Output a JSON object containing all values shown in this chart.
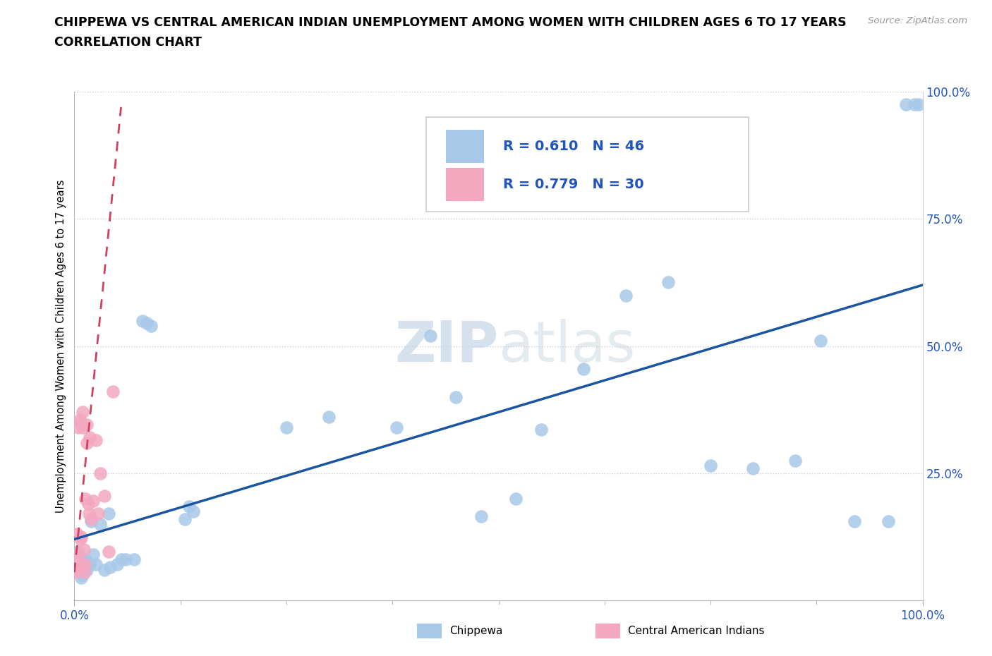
{
  "title_line1": "CHIPPEWA VS CENTRAL AMERICAN INDIAN UNEMPLOYMENT AMONG WOMEN WITH CHILDREN AGES 6 TO 17 YEARS",
  "title_line2": "CORRELATION CHART",
  "source": "Source: ZipAtlas.com",
  "ylabel": "Unemployment Among Women with Children Ages 6 to 17 years",
  "xlim": [
    0.0,
    1.0
  ],
  "ylim": [
    0.0,
    1.0
  ],
  "chippewa_color": "#a8c8e8",
  "central_american_color": "#f4a8c0",
  "chippewa_line_color": "#1a55a0",
  "central_american_line_color": "#d04060",
  "chippewa_R": 0.61,
  "chippewa_N": 46,
  "central_american_R": 0.779,
  "central_american_N": 30,
  "watermark_zip": "ZIP",
  "watermark_atlas": "atlas",
  "chippewa_x": [
    0.005,
    0.006,
    0.008,
    0.01,
    0.01,
    0.012,
    0.015,
    0.015,
    0.018,
    0.02,
    0.022,
    0.025,
    0.03,
    0.035,
    0.04,
    0.042,
    0.05,
    0.055,
    0.06,
    0.07,
    0.08,
    0.085,
    0.09,
    0.13,
    0.135,
    0.14,
    0.25,
    0.3,
    0.38,
    0.42,
    0.45,
    0.48,
    0.52,
    0.55,
    0.6,
    0.65,
    0.7,
    0.75,
    0.8,
    0.85,
    0.88,
    0.92,
    0.96,
    0.98,
    0.99,
    0.995
  ],
  "chippewa_y": [
    0.095,
    0.06,
    0.045,
    0.05,
    0.08,
    0.08,
    0.075,
    0.06,
    0.07,
    0.155,
    0.09,
    0.07,
    0.15,
    0.06,
    0.17,
    0.065,
    0.07,
    0.08,
    0.08,
    0.08,
    0.55,
    0.545,
    0.54,
    0.16,
    0.185,
    0.175,
    0.34,
    0.36,
    0.34,
    0.52,
    0.4,
    0.165,
    0.2,
    0.335,
    0.455,
    0.6,
    0.625,
    0.265,
    0.26,
    0.275,
    0.51,
    0.155,
    0.155,
    0.975,
    0.975,
    0.975
  ],
  "central_american_x": [
    0.001,
    0.002,
    0.003,
    0.003,
    0.004,
    0.005,
    0.006,
    0.007,
    0.007,
    0.008,
    0.009,
    0.01,
    0.01,
    0.011,
    0.012,
    0.012,
    0.013,
    0.015,
    0.015,
    0.016,
    0.017,
    0.018,
    0.02,
    0.022,
    0.025,
    0.028,
    0.03,
    0.035,
    0.04,
    0.045
  ],
  "central_american_y": [
    0.055,
    0.08,
    0.06,
    0.13,
    0.09,
    0.34,
    0.355,
    0.12,
    0.35,
    0.125,
    0.07,
    0.34,
    0.37,
    0.1,
    0.07,
    0.055,
    0.2,
    0.345,
    0.31,
    0.19,
    0.17,
    0.32,
    0.16,
    0.195,
    0.315,
    0.17,
    0.25,
    0.205,
    0.095,
    0.41
  ],
  "chippewa_line_x0": 0.0,
  "chippewa_line_y0": 0.12,
  "chippewa_line_x1": 1.0,
  "chippewa_line_y1": 0.62,
  "central_line_x0": 0.0,
  "central_line_y0": 0.055,
  "central_line_x1": 0.055,
  "central_line_y1": 0.97
}
